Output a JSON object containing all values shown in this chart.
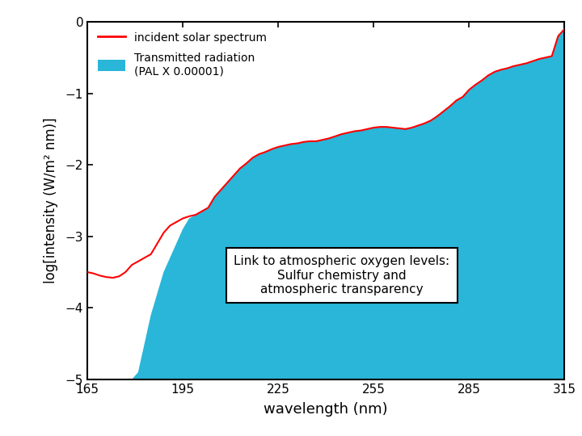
{
  "title": "",
  "xlabel": "wavelength (nm)",
  "ylabel": "log[intensity (W/m² nm)]",
  "xlim": [
    165,
    315
  ],
  "ylim": [
    -5,
    0
  ],
  "yticks": [
    0,
    -1,
    -2,
    -3,
    -4,
    -5
  ],
  "xticks": [
    165,
    195,
    225,
    255,
    285,
    315
  ],
  "solar_color": "#ff0000",
  "fill_color": "#29b6d8",
  "background_color": "#ffffff",
  "legend_solar": "incident solar spectrum",
  "legend_fill": "Transmitted radiation\n(PAL X 0.00001)",
  "annotation": "Link to atmospheric oxygen levels:\nSulfur chemistry and\natmospheric transparency",
  "fill_bottom": -5.0,
  "solar_wl": [
    165,
    167,
    169,
    171,
    173,
    175,
    177,
    179,
    181,
    183,
    185,
    187,
    189,
    191,
    193,
    195,
    197,
    199,
    201,
    203,
    205,
    207,
    209,
    211,
    213,
    215,
    217,
    219,
    221,
    223,
    225,
    227,
    229,
    231,
    233,
    235,
    237,
    239,
    241,
    243,
    245,
    247,
    249,
    251,
    253,
    255,
    257,
    259,
    261,
    263,
    265,
    267,
    269,
    271,
    273,
    275,
    277,
    279,
    281,
    283,
    285,
    287,
    289,
    291,
    293,
    295,
    297,
    299,
    301,
    303,
    305,
    307,
    309,
    311,
    313,
    315
  ],
  "solar_int": [
    -3.5,
    -3.52,
    -3.55,
    -3.57,
    -3.58,
    -3.56,
    -3.5,
    -3.4,
    -3.35,
    -3.3,
    -3.25,
    -3.1,
    -2.95,
    -2.85,
    -2.8,
    -2.75,
    -2.72,
    -2.7,
    -2.65,
    -2.6,
    -2.45,
    -2.35,
    -2.25,
    -2.15,
    -2.05,
    -1.98,
    -1.9,
    -1.85,
    -1.82,
    -1.78,
    -1.75,
    -1.73,
    -1.71,
    -1.7,
    -1.68,
    -1.67,
    -1.67,
    -1.65,
    -1.63,
    -1.6,
    -1.57,
    -1.55,
    -1.53,
    -1.52,
    -1.5,
    -1.48,
    -1.47,
    -1.47,
    -1.48,
    -1.49,
    -1.5,
    -1.48,
    -1.45,
    -1.42,
    -1.38,
    -1.32,
    -1.25,
    -1.18,
    -1.1,
    -1.05,
    -0.95,
    -0.88,
    -0.82,
    -0.75,
    -0.7,
    -0.67,
    -0.65,
    -0.62,
    -0.6,
    -0.58,
    -0.55,
    -0.52,
    -0.5,
    -0.48,
    -0.2,
    -0.1
  ],
  "fill_wl": [
    165,
    167,
    169,
    171,
    173,
    175,
    177,
    179,
    181,
    183,
    185,
    187,
    189,
    191,
    193,
    195,
    197,
    199,
    201,
    203,
    205,
    207,
    209,
    211,
    213,
    215,
    217,
    219,
    221,
    223,
    225,
    227,
    229,
    231,
    233,
    235,
    237,
    239,
    241,
    243,
    245,
    247,
    249,
    251,
    253,
    255,
    257,
    259,
    261,
    263,
    265,
    267,
    269,
    271,
    273,
    275,
    277,
    279,
    281,
    283,
    285,
    287,
    289,
    291,
    293,
    295,
    297,
    299,
    301,
    303,
    305,
    307,
    309,
    311,
    313,
    315
  ],
  "fill_int": [
    -5.0,
    -5.0,
    -5.0,
    -5.0,
    -5.0,
    -5.0,
    -5.0,
    -5.0,
    -4.9,
    -4.5,
    -4.1,
    -3.8,
    -3.5,
    -3.3,
    -3.1,
    -2.9,
    -2.75,
    -2.7,
    -2.65,
    -2.6,
    -2.45,
    -2.35,
    -2.25,
    -2.15,
    -2.05,
    -1.98,
    -1.9,
    -1.85,
    -1.82,
    -1.78,
    -1.75,
    -1.73,
    -1.71,
    -1.7,
    -1.68,
    -1.67,
    -1.67,
    -1.65,
    -1.63,
    -1.6,
    -1.57,
    -1.55,
    -1.53,
    -1.52,
    -1.5,
    -1.48,
    -1.47,
    -1.47,
    -1.48,
    -1.49,
    -1.5,
    -1.48,
    -1.45,
    -1.42,
    -1.38,
    -1.32,
    -1.25,
    -1.18,
    -1.1,
    -1.05,
    -0.95,
    -0.88,
    -0.82,
    -0.75,
    -0.7,
    -0.67,
    -0.65,
    -0.62,
    -0.6,
    -0.58,
    -0.55,
    -0.52,
    -0.5,
    -0.48,
    -0.2,
    -0.1
  ]
}
